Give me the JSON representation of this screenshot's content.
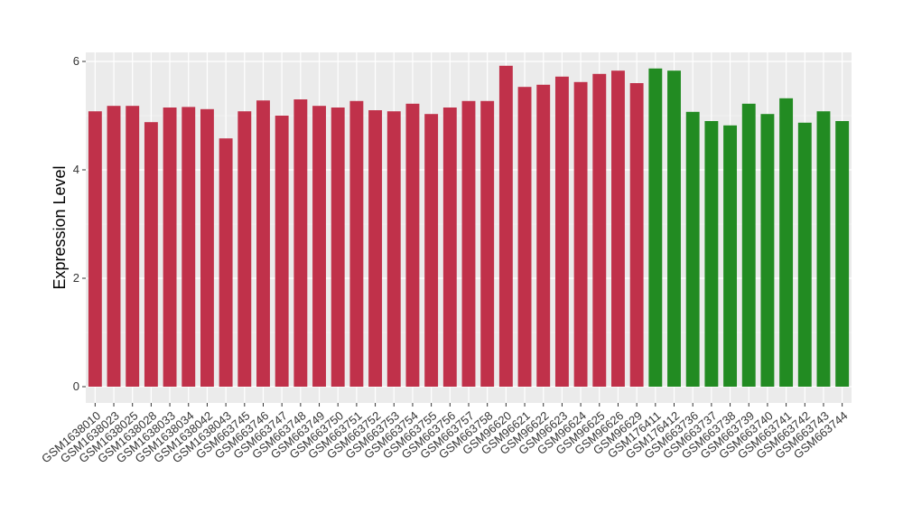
{
  "chart_data": {
    "type": "bar",
    "title": "",
    "xlabel": "",
    "ylabel": "Expression Level",
    "ylim": [
      0,
      6.25
    ],
    "yticks": [
      0,
      2,
      4,
      6
    ],
    "grid": true,
    "legend": "none",
    "colors": {
      "red": "#c0314a",
      "green": "#228b22",
      "panel": "#ebebeb",
      "grid": "#ffffff"
    },
    "categories": [
      "GSM1638010",
      "GSM1638023",
      "GSM1638025",
      "GSM1638028",
      "GSM1638033",
      "GSM1638034",
      "GSM1638042",
      "GSM1638043",
      "GSM663745",
      "GSM663746",
      "GSM663747",
      "GSM663748",
      "GSM663749",
      "GSM663750",
      "GSM663751",
      "GSM663752",
      "GSM663753",
      "GSM663754",
      "GSM663755",
      "GSM663756",
      "GSM663757",
      "GSM663758",
      "GSM96620",
      "GSM96621",
      "GSM96622",
      "GSM96623",
      "GSM96624",
      "GSM96625",
      "GSM96626",
      "GSM96629",
      "GSM176411",
      "GSM176412",
      "GSM663736",
      "GSM663737",
      "GSM663738",
      "GSM663739",
      "GSM663740",
      "GSM663741",
      "GSM663742",
      "GSM663743",
      "GSM663744"
    ],
    "values": [
      5.08,
      5.18,
      5.18,
      4.88,
      5.15,
      5.16,
      5.12,
      4.58,
      5.08,
      5.28,
      5.0,
      5.3,
      5.18,
      5.15,
      5.27,
      5.1,
      5.08,
      5.22,
      5.03,
      5.15,
      5.27,
      5.27,
      5.92,
      5.53,
      5.57,
      5.72,
      5.62,
      5.77,
      5.83,
      5.6,
      5.87,
      5.83,
      5.07,
      4.9,
      4.82,
      5.22,
      5.03,
      5.32,
      4.87,
      5.08,
      4.9
    ],
    "bar_colors": [
      "red",
      "red",
      "red",
      "red",
      "red",
      "red",
      "red",
      "red",
      "red",
      "red",
      "red",
      "red",
      "red",
      "red",
      "red",
      "red",
      "red",
      "red",
      "red",
      "red",
      "red",
      "red",
      "red",
      "red",
      "red",
      "red",
      "red",
      "red",
      "red",
      "red",
      "green",
      "green",
      "green",
      "green",
      "green",
      "green",
      "green",
      "green",
      "green",
      "green",
      "green"
    ]
  }
}
